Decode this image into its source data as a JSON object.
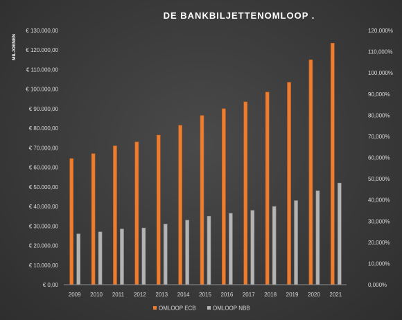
{
  "chart_data": {
    "type": "bar",
    "title": "DE BANKBILJETTENOMLOOP .",
    "ylabel": "MILJOENEN",
    "categories": [
      "2009",
      "2010",
      "2011",
      "2012",
      "2013",
      "2014",
      "2015",
      "2016",
      "2017",
      "2018",
      "2019",
      "2020",
      "2021"
    ],
    "series": [
      {
        "name": "OMLOOP ECB",
        "color": "#ed7d31",
        "axis": "left",
        "values": [
          64500,
          67000,
          71000,
          73000,
          76500,
          81500,
          86500,
          90000,
          93500,
          98500,
          103500,
          115000,
          123500
        ]
      },
      {
        "name": "OMLOOP NBB",
        "color": "#b4b4b4",
        "axis": "left",
        "values": [
          26000,
          27000,
          28500,
          29000,
          31000,
          33000,
          35000,
          36500,
          38000,
          40000,
          43000,
          48000,
          52000
        ]
      }
    ],
    "ylim": [
      0,
      130000
    ],
    "y_ticks": [
      "€ 0,00",
      "€ 10.000,00",
      "€ 20.000,00",
      "€ 30.000,00",
      "€ 40.000,00",
      "€ 50.000,00",
      "€ 60.000,00",
      "€ 70.000,00",
      "€ 80.000,00",
      "€ 90.000,00",
      "€ 100.000,00",
      "€ 110.000,00",
      "€ 120.000,00",
      "€ 130.000,00"
    ],
    "y2lim": [
      0,
      120
    ],
    "y2_ticks": [
      "0,000%",
      "10,000%",
      "20,000%",
      "30,000%",
      "40,000%",
      "50,000%",
      "60,000%",
      "70,000%",
      "80,000%",
      "90,000%",
      "100,000%",
      "110,000%",
      "120,000%"
    ],
    "grid": false,
    "legend": "bottom-center"
  }
}
